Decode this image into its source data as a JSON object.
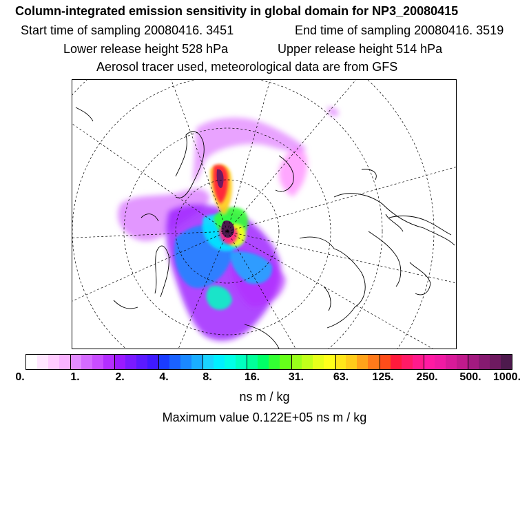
{
  "header": {
    "title": "Column-integrated emission sensitivity in global domain for NP3_20080415",
    "start_label": "Start time of sampling 20080416.  3451",
    "end_label": "End time of sampling 20080416.  3519",
    "lower_label": "Lower release height  528 hPa",
    "upper_label": "Upper release height  514 hPa",
    "tracer_label": "Aerosol tracer used, meteorological data are from GFS"
  },
  "colorbar": {
    "ticks": [
      "0.",
      "1.",
      "2.",
      "4.",
      "8.",
      "16.",
      "31.",
      "63.",
      "125.",
      "250.",
      "500.",
      "1000."
    ],
    "colors": [
      "#ffffff",
      "#ffe6ff",
      "#ffccff",
      "#f9b3ff",
      "#e38cff",
      "#d56bff",
      "#c84dff",
      "#b32eff",
      "#9a1aff",
      "#7a1aff",
      "#5b1aff",
      "#3f1aff",
      "#1a3cff",
      "#1a62ff",
      "#1a88ff",
      "#1aaeff",
      "#1ad4ff",
      "#00f0ff",
      "#00ffe6",
      "#00ffc0",
      "#00ff99",
      "#00ff66",
      "#33ff33",
      "#66ff1a",
      "#99ff1a",
      "#c0ff1a",
      "#e6ff1a",
      "#ffff1a",
      "#ffe61a",
      "#ffcc1a",
      "#ffa31a",
      "#ff7a1a",
      "#ff4d1a",
      "#ff1a3c",
      "#ff1a66",
      "#ff1a8c",
      "#ff1aa3",
      "#f01aa3",
      "#d81a99",
      "#c01a8c",
      "#a31a80",
      "#861a70",
      "#6e1a60",
      "#4d1a4d"
    ],
    "units": "ns m / kg"
  },
  "footer": {
    "max_value": "Maximum value  0.122E+05 ns m / kg"
  }
}
